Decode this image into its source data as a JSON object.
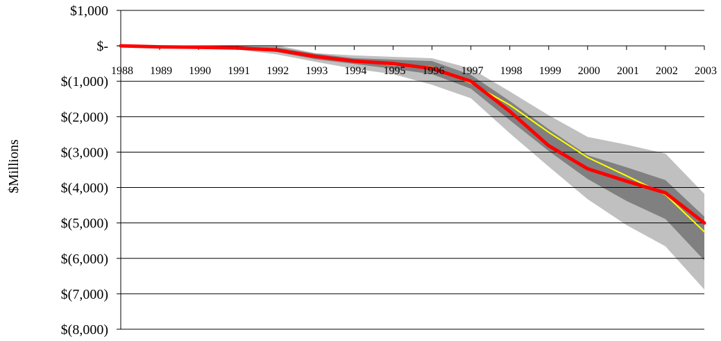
{
  "chart_data": {
    "type": "area",
    "title": "",
    "xlabel": "",
    "ylabel": "$Millions",
    "categories": [
      "1988",
      "1989",
      "1990",
      "1991",
      "1992",
      "1993",
      "1994",
      "1995",
      "1996",
      "1997",
      "1998",
      "1999",
      "2000",
      "2001",
      "2002",
      "2003"
    ],
    "ylim": [
      -8000,
      1000
    ],
    "yticks": [
      1000,
      0,
      -1000,
      -2000,
      -3000,
      -4000,
      -5000,
      -6000,
      -7000,
      -8000
    ],
    "ytick_labels": [
      "$1,000",
      "$-",
      "$(1,000)",
      "$(2,000)",
      "$(3,000)",
      "$(4,000)",
      "$(5,000)",
      "$(6,000)",
      "$(7,000)",
      "$(8,000)"
    ],
    "grid": true,
    "bands": [
      {
        "color": "#c0c0c0",
        "upper": [
          0,
          0,
          10,
          15,
          20,
          -210,
          -270,
          -310,
          -350,
          -640,
          -1290,
          -1960,
          -2570,
          -2790,
          -3040,
          -4180
        ],
        "lower": [
          -10,
          -50,
          -50,
          -105,
          -240,
          -450,
          -650,
          -800,
          -1100,
          -1480,
          -2470,
          -3410,
          -4330,
          -5060,
          -5660,
          -6880
        ]
      },
      {
        "color": "#808080",
        "upper": [
          0,
          -15,
          -10,
          -25,
          -40,
          -220,
          -350,
          -390,
          -430,
          -820,
          -1560,
          -2350,
          -3090,
          -3430,
          -3790,
          -4820
        ],
        "lower": [
          -10,
          -40,
          -40,
          -80,
          -170,
          -380,
          -510,
          -650,
          -800,
          -1210,
          -2100,
          -2970,
          -3760,
          -4380,
          -4890,
          -6060
        ]
      }
    ],
    "series": [
      {
        "values": [
          0,
          -30,
          -35,
          -50,
          -100,
          -290,
          -430,
          -540,
          -600,
          -1050,
          -1670,
          -2440,
          -3150,
          -3670,
          -4200,
          -5250
        ],
        "color": "#ffff00",
        "width": 2
      },
      {
        "values": [
          0,
          -30,
          -40,
          -60,
          -120,
          -300,
          -430,
          -500,
          -640,
          -1000,
          -1850,
          -2820,
          -3470,
          -3820,
          -4150,
          -5000
        ],
        "color": "#ff0000",
        "width": 5
      }
    ]
  }
}
